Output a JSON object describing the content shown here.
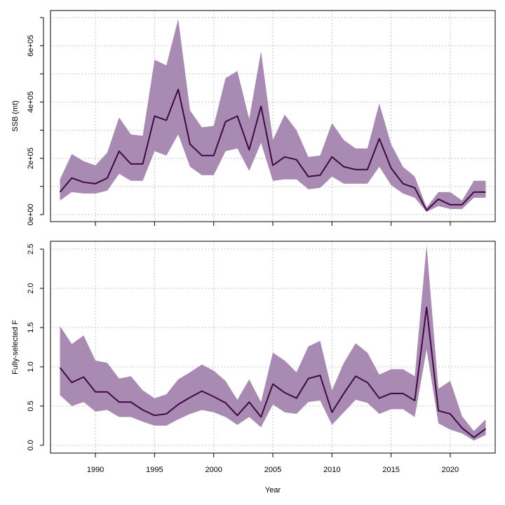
{
  "chart_data": [
    {
      "type": "area",
      "ylabel": "SSB (mt)",
      "xlim": [
        1986.2,
        2023.8
      ],
      "ylim": [
        -25000,
        725000
      ],
      "yticks": [
        0,
        200000,
        400000,
        600000
      ],
      "ytick_labels": [
        "0e+00",
        "2e+05",
        "4e+05",
        "6e+05"
      ],
      "yminor": [
        100000,
        300000,
        500000,
        700000
      ],
      "grid": true,
      "colors": {
        "band": "#a98ab2",
        "line": "#3f0a44"
      },
      "x": [
        1987,
        1988,
        1989,
        1990,
        1991,
        1992,
        1993,
        1994,
        1995,
        1996,
        1997,
        1998,
        1999,
        2000,
        2001,
        2002,
        2003,
        2004,
        2005,
        2006,
        2007,
        2008,
        2009,
        2010,
        2011,
        2012,
        2013,
        2014,
        2015,
        2016,
        2017,
        2018,
        2019,
        2020,
        2021,
        2022,
        2023
      ],
      "series": [
        {
          "role": "estimate",
          "values": [
            80000,
            130000,
            115000,
            110000,
            130000,
            225000,
            180000,
            180000,
            350000,
            335000,
            445000,
            250000,
            210000,
            210000,
            330000,
            350000,
            230000,
            385000,
            175000,
            205000,
            195000,
            135000,
            140000,
            205000,
            170000,
            160000,
            160000,
            270000,
            165000,
            110000,
            95000,
            15000,
            55000,
            35000,
            35000,
            80000,
            80000
          ]
        },
        {
          "role": "lower",
          "values": [
            50000,
            80000,
            75000,
            75000,
            85000,
            145000,
            120000,
            120000,
            225000,
            210000,
            285000,
            170000,
            140000,
            140000,
            225000,
            235000,
            155000,
            255000,
            120000,
            125000,
            125000,
            90000,
            95000,
            135000,
            110000,
            110000,
            110000,
            170000,
            105000,
            75000,
            60000,
            10000,
            30000,
            20000,
            20000,
            60000,
            60000
          ]
        },
        {
          "role": "upper",
          "values": [
            125000,
            215000,
            190000,
            175000,
            220000,
            345000,
            285000,
            280000,
            550000,
            530000,
            695000,
            370000,
            310000,
            315000,
            485000,
            510000,
            340000,
            580000,
            265000,
            355000,
            300000,
            205000,
            210000,
            325000,
            265000,
            235000,
            235000,
            395000,
            250000,
            170000,
            135000,
            25000,
            80000,
            80000,
            50000,
            120000,
            120000
          ]
        }
      ]
    },
    {
      "type": "area",
      "xlabel": "Year",
      "ylabel": "Fully-selected F",
      "xlim": [
        1986.2,
        2023.8
      ],
      "ylim": [
        -0.1,
        2.6
      ],
      "xticks": [
        1990,
        1995,
        2000,
        2005,
        2010,
        2015,
        2020
      ],
      "xtick_labels": [
        "1990",
        "1995",
        "2000",
        "2005",
        "2010",
        "2015",
        "2020"
      ],
      "yticks": [
        0,
        0.5,
        1,
        1.5,
        2,
        2.5
      ],
      "ytick_labels": [
        "0.0",
        "0.5",
        "1.0",
        "1.5",
        "2.0",
        "2.5"
      ],
      "grid": true,
      "colors": {
        "band": "#a98ab2",
        "line": "#3f0a44"
      },
      "x": [
        1987,
        1988,
        1989,
        1990,
        1991,
        1992,
        1993,
        1994,
        1995,
        1996,
        1997,
        1998,
        1999,
        2000,
        2001,
        2002,
        2003,
        2004,
        2005,
        2006,
        2007,
        2008,
        2009,
        2010,
        2011,
        2012,
        2013,
        2014,
        2015,
        2016,
        2017,
        2018,
        2019,
        2020,
        2021,
        2022,
        2023
      ],
      "series": [
        {
          "role": "estimate",
          "values": [
            0.99,
            0.8,
            0.87,
            0.68,
            0.68,
            0.55,
            0.55,
            0.45,
            0.38,
            0.4,
            0.52,
            0.61,
            0.69,
            0.62,
            0.54,
            0.38,
            0.55,
            0.36,
            0.78,
            0.67,
            0.6,
            0.85,
            0.89,
            0.42,
            0.66,
            0.88,
            0.8,
            0.6,
            0.66,
            0.66,
            0.57,
            1.76,
            0.44,
            0.4,
            0.22,
            0.1,
            0.21
          ]
        },
        {
          "role": "lower",
          "values": [
            0.64,
            0.5,
            0.55,
            0.43,
            0.45,
            0.36,
            0.36,
            0.3,
            0.25,
            0.25,
            0.33,
            0.4,
            0.45,
            0.42,
            0.36,
            0.26,
            0.36,
            0.23,
            0.52,
            0.42,
            0.4,
            0.55,
            0.57,
            0.26,
            0.42,
            0.58,
            0.54,
            0.4,
            0.46,
            0.46,
            0.36,
            1.22,
            0.28,
            0.2,
            0.15,
            0.06,
            0.13
          ]
        },
        {
          "role": "upper",
          "values": [
            1.52,
            1.29,
            1.4,
            1.08,
            1.05,
            0.85,
            0.88,
            0.7,
            0.6,
            0.65,
            0.84,
            0.93,
            1.03,
            0.95,
            0.82,
            0.58,
            0.84,
            0.55,
            1.18,
            1.08,
            0.93,
            1.26,
            1.33,
            0.7,
            1.05,
            1.3,
            1.18,
            0.9,
            0.97,
            0.97,
            0.88,
            2.55,
            0.72,
            0.82,
            0.37,
            0.18,
            0.33
          ]
        }
      ]
    }
  ]
}
